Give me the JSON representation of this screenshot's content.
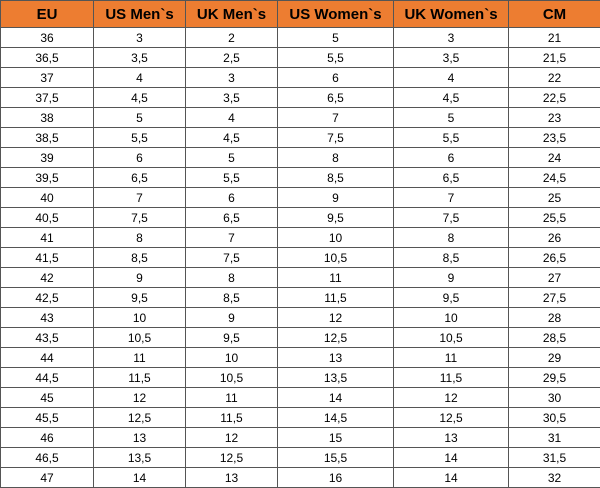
{
  "colors": {
    "header_bg": "#ED7D31"
  },
  "headers": [
    "EU",
    "US Men`s",
    "UK Men`s",
    "US Women`s",
    "UK Women`s",
    "CM"
  ],
  "rows": [
    [
      "36",
      "3",
      "2",
      "5",
      "3",
      "21"
    ],
    [
      "36,5",
      "3,5",
      "2,5",
      "5,5",
      "3,5",
      "21,5"
    ],
    [
      "37",
      "4",
      "3",
      "6",
      "4",
      "22"
    ],
    [
      "37,5",
      "4,5",
      "3,5",
      "6,5",
      "4,5",
      "22,5"
    ],
    [
      "38",
      "5",
      "4",
      "7",
      "5",
      "23"
    ],
    [
      "38,5",
      "5,5",
      "4,5",
      "7,5",
      "5,5",
      "23,5"
    ],
    [
      "39",
      "6",
      "5",
      "8",
      "6",
      "24"
    ],
    [
      "39,5",
      "6,5",
      "5,5",
      "8,5",
      "6,5",
      "24,5"
    ],
    [
      "40",
      "7",
      "6",
      "9",
      "7",
      "25"
    ],
    [
      "40,5",
      "7,5",
      "6,5",
      "9,5",
      "7,5",
      "25,5"
    ],
    [
      "41",
      "8",
      "7",
      "10",
      "8",
      "26"
    ],
    [
      "41,5",
      "8,5",
      "7,5",
      "10,5",
      "8,5",
      "26,5"
    ],
    [
      "42",
      "9",
      "8",
      "11",
      "9",
      "27"
    ],
    [
      "42,5",
      "9,5",
      "8,5",
      "11,5",
      "9,5",
      "27,5"
    ],
    [
      "43",
      "10",
      "9",
      "12",
      "10",
      "28"
    ],
    [
      "43,5",
      "10,5",
      "9,5",
      "12,5",
      "10,5",
      "28,5"
    ],
    [
      "44",
      "11",
      "10",
      "13",
      "11",
      "29"
    ],
    [
      "44,5",
      "11,5",
      "10,5",
      "13,5",
      "11,5",
      "29,5"
    ],
    [
      "45",
      "12",
      "11",
      "14",
      "12",
      "30"
    ],
    [
      "45,5",
      "12,5",
      "11,5",
      "14,5",
      "12,5",
      "30,5"
    ],
    [
      "46",
      "13",
      "12",
      "15",
      "13",
      "31"
    ],
    [
      "46,5",
      "13,5",
      "12,5",
      "15,5",
      "14",
      "31,5"
    ],
    [
      "47",
      "14",
      "13",
      "16",
      "14",
      "32"
    ]
  ]
}
